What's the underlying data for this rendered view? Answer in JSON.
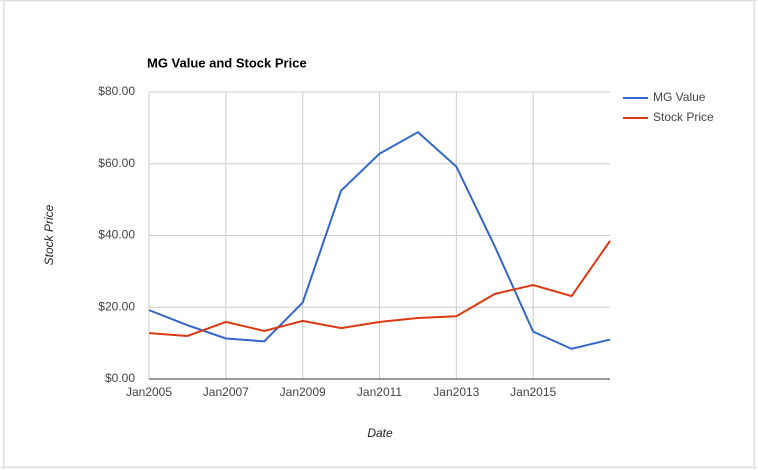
{
  "chart_data": {
    "type": "line",
    "title": "MG Value and Stock Price",
    "x_label": "Date",
    "y_label": "Stock Price",
    "x": [
      "2005-01",
      "2006-01",
      "2007-01",
      "2008-01",
      "2009-01",
      "2010-01",
      "2011-01",
      "2012-01",
      "2013-01",
      "2014-01",
      "2015-01",
      "2016-01",
      "2017-01"
    ],
    "xlim": [
      "2005-01",
      "2017-01"
    ],
    "xticks": [
      {
        "value": "2005-01",
        "label": "Jan2005"
      },
      {
        "value": "2007-01",
        "label": "Jan2007"
      },
      {
        "value": "2009-01",
        "label": "Jan2009"
      },
      {
        "value": "2011-01",
        "label": "Jan2011"
      },
      {
        "value": "2013-01",
        "label": "Jan2013"
      },
      {
        "value": "2015-01",
        "label": "Jan2015"
      }
    ],
    "ylim": [
      0,
      80
    ],
    "yticks": [
      {
        "value": 0,
        "label": "$0.00"
      },
      {
        "value": 20,
        "label": "$20.00"
      },
      {
        "value": 40,
        "label": "$40.00"
      },
      {
        "value": 60,
        "label": "$60.00"
      },
      {
        "value": 80,
        "label": "$80.00"
      }
    ],
    "grid": true,
    "legend": "right",
    "series": [
      {
        "name": "MG Value",
        "color": "#3366cc",
        "values": [
          19.2,
          15,
          11.3,
          10.5,
          21.3,
          52.5,
          62.8,
          68.8,
          59.2,
          37,
          13.2,
          8.4,
          11
        ]
      },
      {
        "name": "Stock Price",
        "color": "#dc3912",
        "values": [
          12.8,
          12,
          15.9,
          13.4,
          16.2,
          14.2,
          15.9,
          17,
          17.5,
          23.7,
          26.2,
          23.1,
          38.5
        ]
      }
    ]
  }
}
